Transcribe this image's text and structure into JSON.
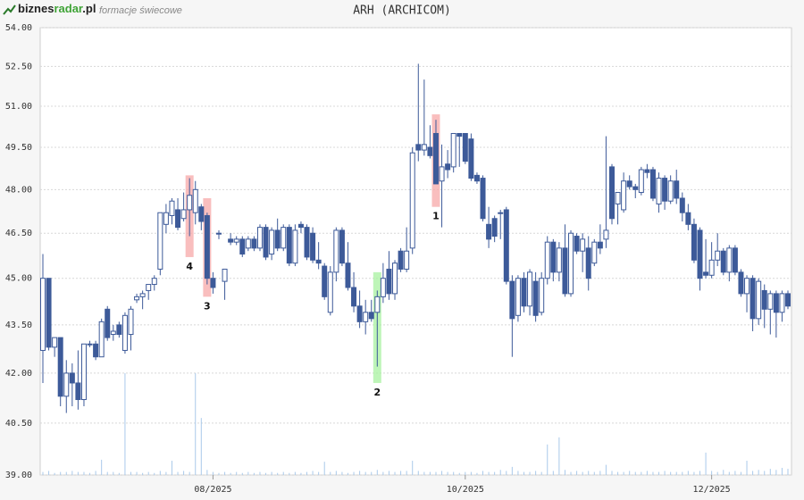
{
  "header": {
    "logo": [
      "biznes",
      "radar",
      ".pl"
    ],
    "subtitle": "formacje świecowe"
  },
  "chart_data": {
    "type": "candlestick",
    "title": "ARH (ARCHICOM)",
    "log": true,
    "grid": true,
    "up_color": "#ffffff",
    "down_color": "#3d5a99",
    "edge_color": "#3d5a99",
    "volume_color": "#a9c9ea",
    "ylim": [
      39,
      54
    ],
    "yticks": [
      {
        "value": 54,
        "label": "54.00"
      },
      {
        "value": 52.5,
        "label": "52.50"
      },
      {
        "value": 51,
        "label": "51.00"
      },
      {
        "value": 49.5,
        "label": "49.50"
      },
      {
        "value": 48,
        "label": "48.00"
      },
      {
        "value": 46.5,
        "label": "46.50"
      },
      {
        "value": 45,
        "label": "45.00"
      },
      {
        "value": 43.5,
        "label": "43.50"
      },
      {
        "value": 42,
        "label": "42.00"
      },
      {
        "value": 40.5,
        "label": "40.50"
      },
      {
        "value": 39,
        "label": "39.00"
      }
    ],
    "xlim": [
      0,
      127
    ],
    "xticks": [
      {
        "value": 29,
        "label": "08/2025"
      },
      {
        "value": 72,
        "label": "10/2025"
      },
      {
        "value": 114,
        "label": "12/2025"
      }
    ],
    "ohlc": [
      [
        42.7,
        45.8,
        41.7,
        45.0
      ],
      [
        45.0,
        45.0,
        42.7,
        42.8
      ],
      [
        42.8,
        43.1,
        42.5,
        43.1
      ],
      [
        43.1,
        43.1,
        41.0,
        41.3
      ],
      [
        41.3,
        42.4,
        40.8,
        42.0
      ],
      [
        42.0,
        42.3,
        41.0,
        41.7
      ],
      [
        41.7,
        42.7,
        40.9,
        41.2
      ],
      [
        41.2,
        42.9,
        41.0,
        42.9
      ],
      [
        42.9,
        43.0,
        42.8,
        42.9
      ],
      [
        42.9,
        43.0,
        42.4,
        42.5
      ],
      [
        42.5,
        43.7,
        42.5,
        43.6
      ],
      [
        44.0,
        44.1,
        43.0,
        43.1
      ],
      [
        43.2,
        43.5,
        43.0,
        43.3
      ],
      [
        43.5,
        43.6,
        43.1,
        43.2
      ],
      [
        42.7,
        43.9,
        42.6,
        43.8
      ],
      [
        43.2,
        44.1,
        42.7,
        44.0
      ],
      [
        44.3,
        44.5,
        44.2,
        44.4
      ],
      [
        44.4,
        44.6,
        44.0,
        44.5
      ],
      [
        44.6,
        44.8,
        44.3,
        44.8
      ],
      [
        44.8,
        45.1,
        44.6,
        45.0
      ],
      [
        45.3,
        47.2,
        45.1,
        47.2
      ],
      [
        46.8,
        47.5,
        46.5,
        47.2
      ],
      [
        47.1,
        47.7,
        46.8,
        47.6
      ],
      [
        47.3,
        47.7,
        46.6,
        46.7
      ],
      [
        47.0,
        47.9,
        46.9,
        47.3
      ],
      [
        47.3,
        48.4,
        46.4,
        47.8
      ],
      [
        47.2,
        48.3,
        46.8,
        48.0
      ],
      [
        47.4,
        47.5,
        46.6,
        46.9
      ],
      [
        47.1,
        47.2,
        44.8,
        45.0
      ],
      [
        45.0,
        45.2,
        44.5,
        44.7
      ],
      [
        46.5,
        46.6,
        46.3,
        46.5
      ],
      [
        44.9,
        45.3,
        44.3,
        45.3
      ],
      [
        46.3,
        46.5,
        46.1,
        46.2
      ],
      [
        46.2,
        46.4,
        46.1,
        46.3
      ],
      [
        46.3,
        46.4,
        45.7,
        45.8
      ],
      [
        46.0,
        46.4,
        45.9,
        46.3
      ],
      [
        46.3,
        46.4,
        45.9,
        46.0
      ],
      [
        46.0,
        46.8,
        45.9,
        46.7
      ],
      [
        46.7,
        46.8,
        45.6,
        45.7
      ],
      [
        45.8,
        46.7,
        45.6,
        46.6
      ],
      [
        46.6,
        47.0,
        45.9,
        46.0
      ],
      [
        46.0,
        46.8,
        45.9,
        46.7
      ],
      [
        46.7,
        46.8,
        45.4,
        45.5
      ],
      [
        45.5,
        46.8,
        45.4,
        46.6
      ],
      [
        46.8,
        46.9,
        46.5,
        46.7
      ],
      [
        46.7,
        46.8,
        45.6,
        45.7
      ],
      [
        46.5,
        46.7,
        45.5,
        45.6
      ],
      [
        45.6,
        46.2,
        45.3,
        45.5
      ],
      [
        45.4,
        45.5,
        44.3,
        44.4
      ],
      [
        43.9,
        45.4,
        43.8,
        45.2
      ],
      [
        45.2,
        46.7,
        44.9,
        46.6
      ],
      [
        46.6,
        46.7,
        45.4,
        45.5
      ],
      [
        45.5,
        46.2,
        44.6,
        44.7
      ],
      [
        44.7,
        45.2,
        43.9,
        44.1
      ],
      [
        44.1,
        44.6,
        43.4,
        43.6
      ],
      [
        43.6,
        44.3,
        43.2,
        43.9
      ],
      [
        43.9,
        44.3,
        43.6,
        43.7
      ],
      [
        43.9,
        44.6,
        42.2,
        44.4
      ],
      [
        44.4,
        45.5,
        44.2,
        45.0
      ],
      [
        45.3,
        45.9,
        44.3,
        44.5
      ],
      [
        44.5,
        45.6,
        44.3,
        45.5
      ],
      [
        45.9,
        46.0,
        45.2,
        45.3
      ],
      [
        45.3,
        46.7,
        45.2,
        45.9
      ],
      [
        46.0,
        49.5,
        45.8,
        49.3
      ],
      [
        49.6,
        52.6,
        49.0,
        49.4
      ],
      [
        49.4,
        52.0,
        49.2,
        49.6
      ],
      [
        49.5,
        50.3,
        49.1,
        49.2
      ],
      [
        50.0,
        50.5,
        48.2,
        48.2
      ],
      [
        48.3,
        49.6,
        46.7,
        48.8
      ],
      [
        48.9,
        49.4,
        48.4,
        48.7
      ],
      [
        48.8,
        50.0,
        48.6,
        50.0
      ],
      [
        50.0,
        50.0,
        48.8,
        49.9
      ],
      [
        50.0,
        50.0,
        48.9,
        49.0
      ],
      [
        49.8,
        50.0,
        48.3,
        48.4
      ],
      [
        48.5,
        48.6,
        48.2,
        48.3
      ],
      [
        48.4,
        48.5,
        46.9,
        47.0
      ],
      [
        46.8,
        47.4,
        46.0,
        46.3
      ],
      [
        47.0,
        47.1,
        46.2,
        46.4
      ],
      [
        47.2,
        47.3,
        46.3,
        47.2
      ],
      [
        47.3,
        47.4,
        44.8,
        44.9
      ],
      [
        44.9,
        45.1,
        42.5,
        43.7
      ],
      [
        43.8,
        45.1,
        43.6,
        45.0
      ],
      [
        45.0,
        45.2,
        43.9,
        44.1
      ],
      [
        44.1,
        45.3,
        43.8,
        45.2
      ],
      [
        44.9,
        45.2,
        43.6,
        43.8
      ],
      [
        43.9,
        45.2,
        43.8,
        45.0
      ],
      [
        45.0,
        46.4,
        44.8,
        46.2
      ],
      [
        46.2,
        46.3,
        44.9,
        45.2
      ],
      [
        45.2,
        46.2,
        44.9,
        46.0
      ],
      [
        46.0,
        46.8,
        44.4,
        44.5
      ],
      [
        44.5,
        46.6,
        44.4,
        46.5
      ],
      [
        46.4,
        46.5,
        45.8,
        45.9
      ],
      [
        45.9,
        46.5,
        45.2,
        46.3
      ],
      [
        46.0,
        46.4,
        44.6,
        45.0
      ],
      [
        45.5,
        46.3,
        45.4,
        46.2
      ],
      [
        46.2,
        46.8,
        45.8,
        46.0
      ],
      [
        46.3,
        49.9,
        46.0,
        46.6
      ],
      [
        48.8,
        48.9,
        46.8,
        47.0
      ],
      [
        47.5,
        47.9,
        46.8,
        47.9
      ],
      [
        47.3,
        48.6,
        47.2,
        48.3
      ],
      [
        48.3,
        48.5,
        48.0,
        48.1
      ],
      [
        48.1,
        48.2,
        47.7,
        48.0
      ],
      [
        47.9,
        48.8,
        47.8,
        48.7
      ],
      [
        48.7,
        48.9,
        48.4,
        48.6
      ],
      [
        48.7,
        48.8,
        47.6,
        47.7
      ],
      [
        47.5,
        48.6,
        47.2,
        48.4
      ],
      [
        48.4,
        48.5,
        47.3,
        47.6
      ],
      [
        47.6,
        48.5,
        47.5,
        48.3
      ],
      [
        48.3,
        48.7,
        47.5,
        47.7
      ],
      [
        47.7,
        47.9,
        46.9,
        47.2
      ],
      [
        47.2,
        47.5,
        46.6,
        46.8
      ],
      [
        46.8,
        47.0,
        45.5,
        45.6
      ],
      [
        46.6,
        46.7,
        44.6,
        45.0
      ],
      [
        45.2,
        46.3,
        45.0,
        45.1
      ],
      [
        45.1,
        46.2,
        45.0,
        45.6
      ],
      [
        45.6,
        46.5,
        45.4,
        45.9
      ],
      [
        45.9,
        46.0,
        45.1,
        45.2
      ],
      [
        45.2,
        46.1,
        44.9,
        46.0
      ],
      [
        46.0,
        46.1,
        45.1,
        45.2
      ],
      [
        45.2,
        45.3,
        44.4,
        44.5
      ],
      [
        44.5,
        45.1,
        43.9,
        45.0
      ],
      [
        45.0,
        45.1,
        43.3,
        43.7
      ],
      [
        43.7,
        45.0,
        43.5,
        44.9
      ],
      [
        44.6,
        44.8,
        43.4,
        44.0
      ],
      [
        44.0,
        44.6,
        43.2,
        44.5
      ],
      [
        44.5,
        44.6,
        43.1,
        43.9
      ],
      [
        43.9,
        44.6,
        43.6,
        44.5
      ],
      [
        44.5,
        44.6,
        44.0,
        44.1
      ]
    ],
    "volume": [
      3,
      4,
      2,
      3,
      3,
      4,
      3,
      3,
      2,
      4,
      15,
      3,
      3,
      2,
      100,
      3,
      3,
      2,
      3,
      2,
      4,
      3,
      14,
      3,
      4,
      3,
      100,
      56,
      5,
      3,
      2,
      3,
      2,
      3,
      2,
      3,
      2,
      3,
      2,
      3,
      2,
      3,
      2,
      3,
      2,
      3,
      4,
      3,
      13,
      3,
      4,
      3,
      2,
      3,
      4,
      3,
      3,
      5,
      3,
      4,
      3,
      4,
      4,
      14,
      4,
      3,
      3,
      3,
      4,
      3,
      3,
      2,
      3,
      3,
      2,
      4,
      3,
      3,
      5,
      4,
      8,
      4,
      3,
      3,
      4,
      3,
      30,
      4,
      37,
      5,
      3,
      4,
      3,
      4,
      3,
      4,
      10,
      4,
      3,
      3,
      4,
      3,
      3,
      4,
      3,
      3,
      4,
      3,
      3,
      3,
      4,
      3,
      4,
      22,
      4,
      3,
      5,
      3,
      4,
      3,
      14,
      4,
      5,
      4,
      6,
      5,
      7,
      6
    ],
    "annotations": [
      {
        "label": "1",
        "index": 67,
        "low": 47.4,
        "high": 50.7,
        "color": "#f7a8a8"
      },
      {
        "label": "2",
        "index": 57,
        "low": 41.7,
        "high": 45.2,
        "color": "#a8f2a0"
      },
      {
        "label": "3",
        "index": 28,
        "low": 44.4,
        "high": 47.7,
        "color": "#f7a8a8"
      },
      {
        "label": "4",
        "index": 25,
        "low": 45.7,
        "high": 48.5,
        "color": "#f7a8a8"
      }
    ]
  }
}
